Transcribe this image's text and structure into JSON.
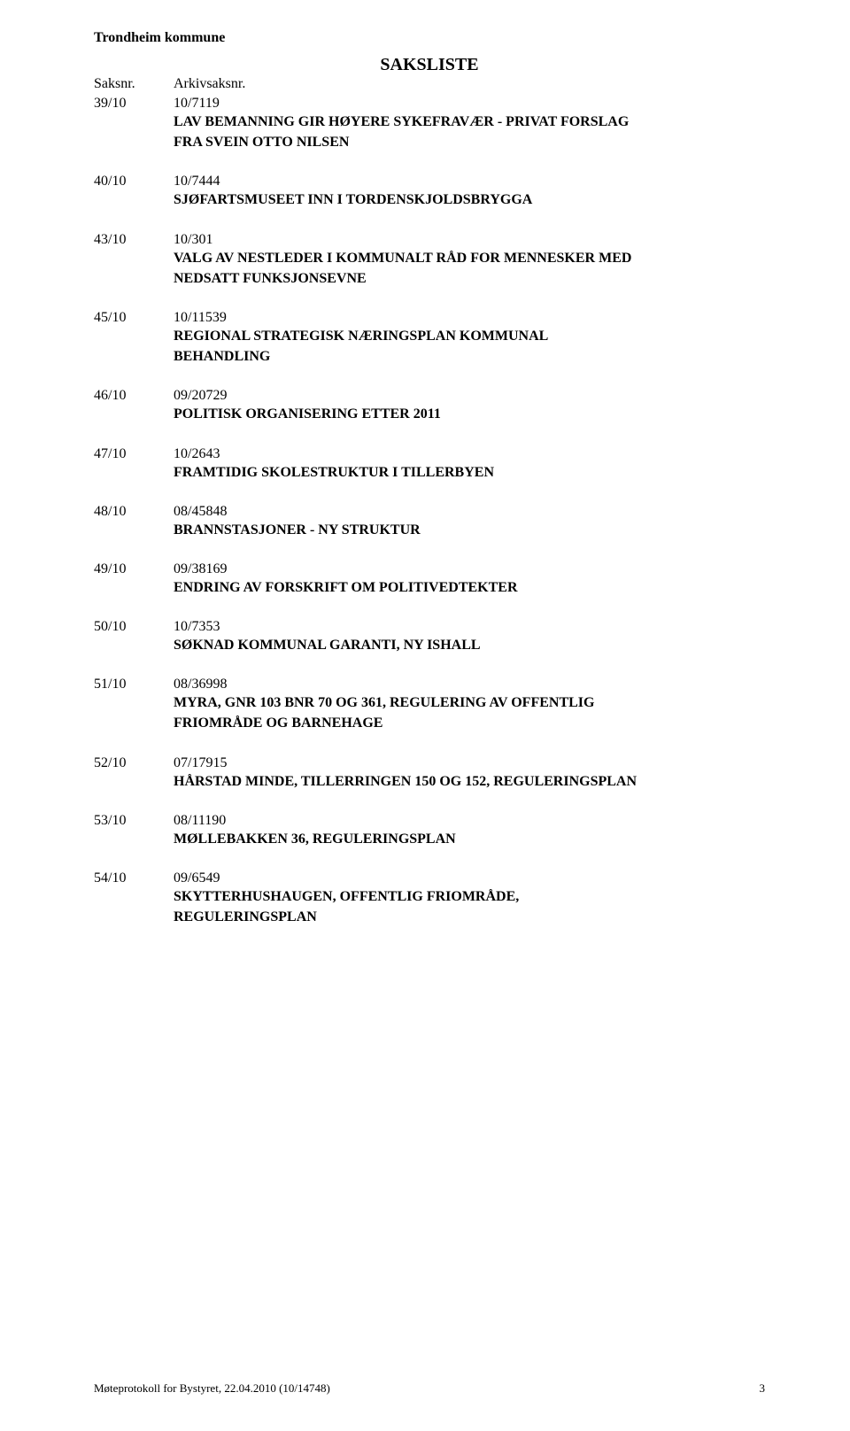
{
  "header": "Trondheim kommune",
  "title": "SAKSLISTE",
  "col1": "Saksnr.",
  "col2": "Arkivsaksnr.",
  "items": [
    {
      "num": "39/10",
      "arkiv": "10/7119",
      "title": "LAV BEMANNING GIR HØYERE SYKEFRAVÆR - PRIVAT FORSLAG\nFRA SVEIN OTTO NILSEN"
    },
    {
      "num": "40/10",
      "arkiv": "10/7444",
      "title": "SJØFARTSMUSEET INN I TORDENSKJOLDSBRYGGA"
    },
    {
      "num": "43/10",
      "arkiv": "10/301",
      "title": "VALG AV NESTLEDER I KOMMUNALT RÅD FOR MENNESKER MED\nNEDSATT FUNKSJONSEVNE"
    },
    {
      "num": "45/10",
      "arkiv": "10/11539",
      "title": "REGIONAL STRATEGISK NÆRINGSPLAN KOMMUNAL\nBEHANDLING"
    },
    {
      "num": "46/10",
      "arkiv": "09/20729",
      "title": "POLITISK ORGANISERING ETTER 2011"
    },
    {
      "num": "47/10",
      "arkiv": "10/2643",
      "title": "FRAMTIDIG SKOLESTRUKTUR I TILLERBYEN"
    },
    {
      "num": "48/10",
      "arkiv": "08/45848",
      "title": "BRANNSTASJONER - NY STRUKTUR"
    },
    {
      "num": "49/10",
      "arkiv": "09/38169",
      "title": "ENDRING AV FORSKRIFT OM POLITIVEDTEKTER"
    },
    {
      "num": "50/10",
      "arkiv": "10/7353",
      "title": "SØKNAD KOMMUNAL GARANTI, NY ISHALL"
    },
    {
      "num": "51/10",
      "arkiv": "08/36998",
      "title": "MYRA, GNR 103 BNR 70 OG 361, REGULERING AV OFFENTLIG\nFRIOMRÅDE OG BARNEHAGE"
    },
    {
      "num": "52/10",
      "arkiv": "07/17915",
      "title": "HÅRSTAD MINDE, TILLERRINGEN 150 OG 152, REGULERINGSPLAN"
    },
    {
      "num": "53/10",
      "arkiv": "08/11190",
      "title": "MØLLEBAKKEN 36, REGULERINGSPLAN"
    },
    {
      "num": "54/10",
      "arkiv": "09/6549",
      "title": "SKYTTERHUSHAUGEN, OFFENTLIG FRIOMRÅDE,\nREGULERINGSPLAN"
    }
  ],
  "footer_left": "Møteprotokoll for Bystyret, 22.04.2010 (10/14748)",
  "footer_page": "3"
}
